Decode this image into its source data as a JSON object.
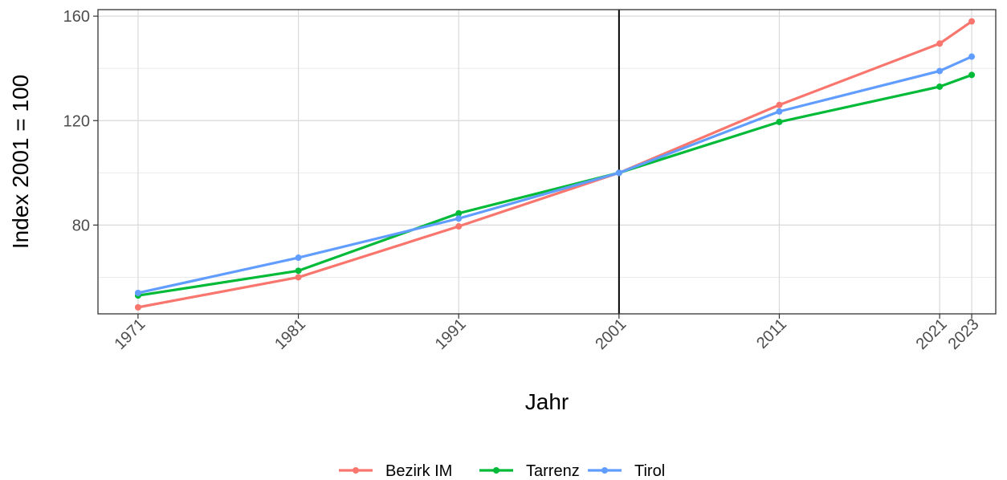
{
  "chart_data": {
    "type": "line",
    "xlabel": "Jahr",
    "ylabel": "Index 2001 = 100",
    "x": [
      1971,
      1981,
      1991,
      2001,
      2011,
      2021,
      2023
    ],
    "x_ticks": [
      "1971",
      "1981",
      "1991",
      "2001",
      "2011",
      "2021",
      "2023"
    ],
    "xlim": [
      1968.5,
      2024.5
    ],
    "y_ticks": [
      "80",
      "120",
      "160"
    ],
    "ylim": [
      46,
      162.5
    ],
    "reference_line_x": 2001,
    "grid": true,
    "legend_position": "bottom",
    "series": [
      {
        "name": "Bezirk IM",
        "color": "#F8766D",
        "values": [
          48.5,
          60,
          79.5,
          100,
          126,
          149.5,
          158
        ]
      },
      {
        "name": "Tarrenz",
        "color": "#00BA38",
        "values": [
          53,
          62.5,
          84.5,
          100,
          119.5,
          133,
          137.5
        ]
      },
      {
        "name": "Tirol",
        "color": "#619CFF",
        "values": [
          54,
          67.5,
          82.5,
          100,
          123.5,
          139,
          144.5
        ]
      }
    ]
  }
}
